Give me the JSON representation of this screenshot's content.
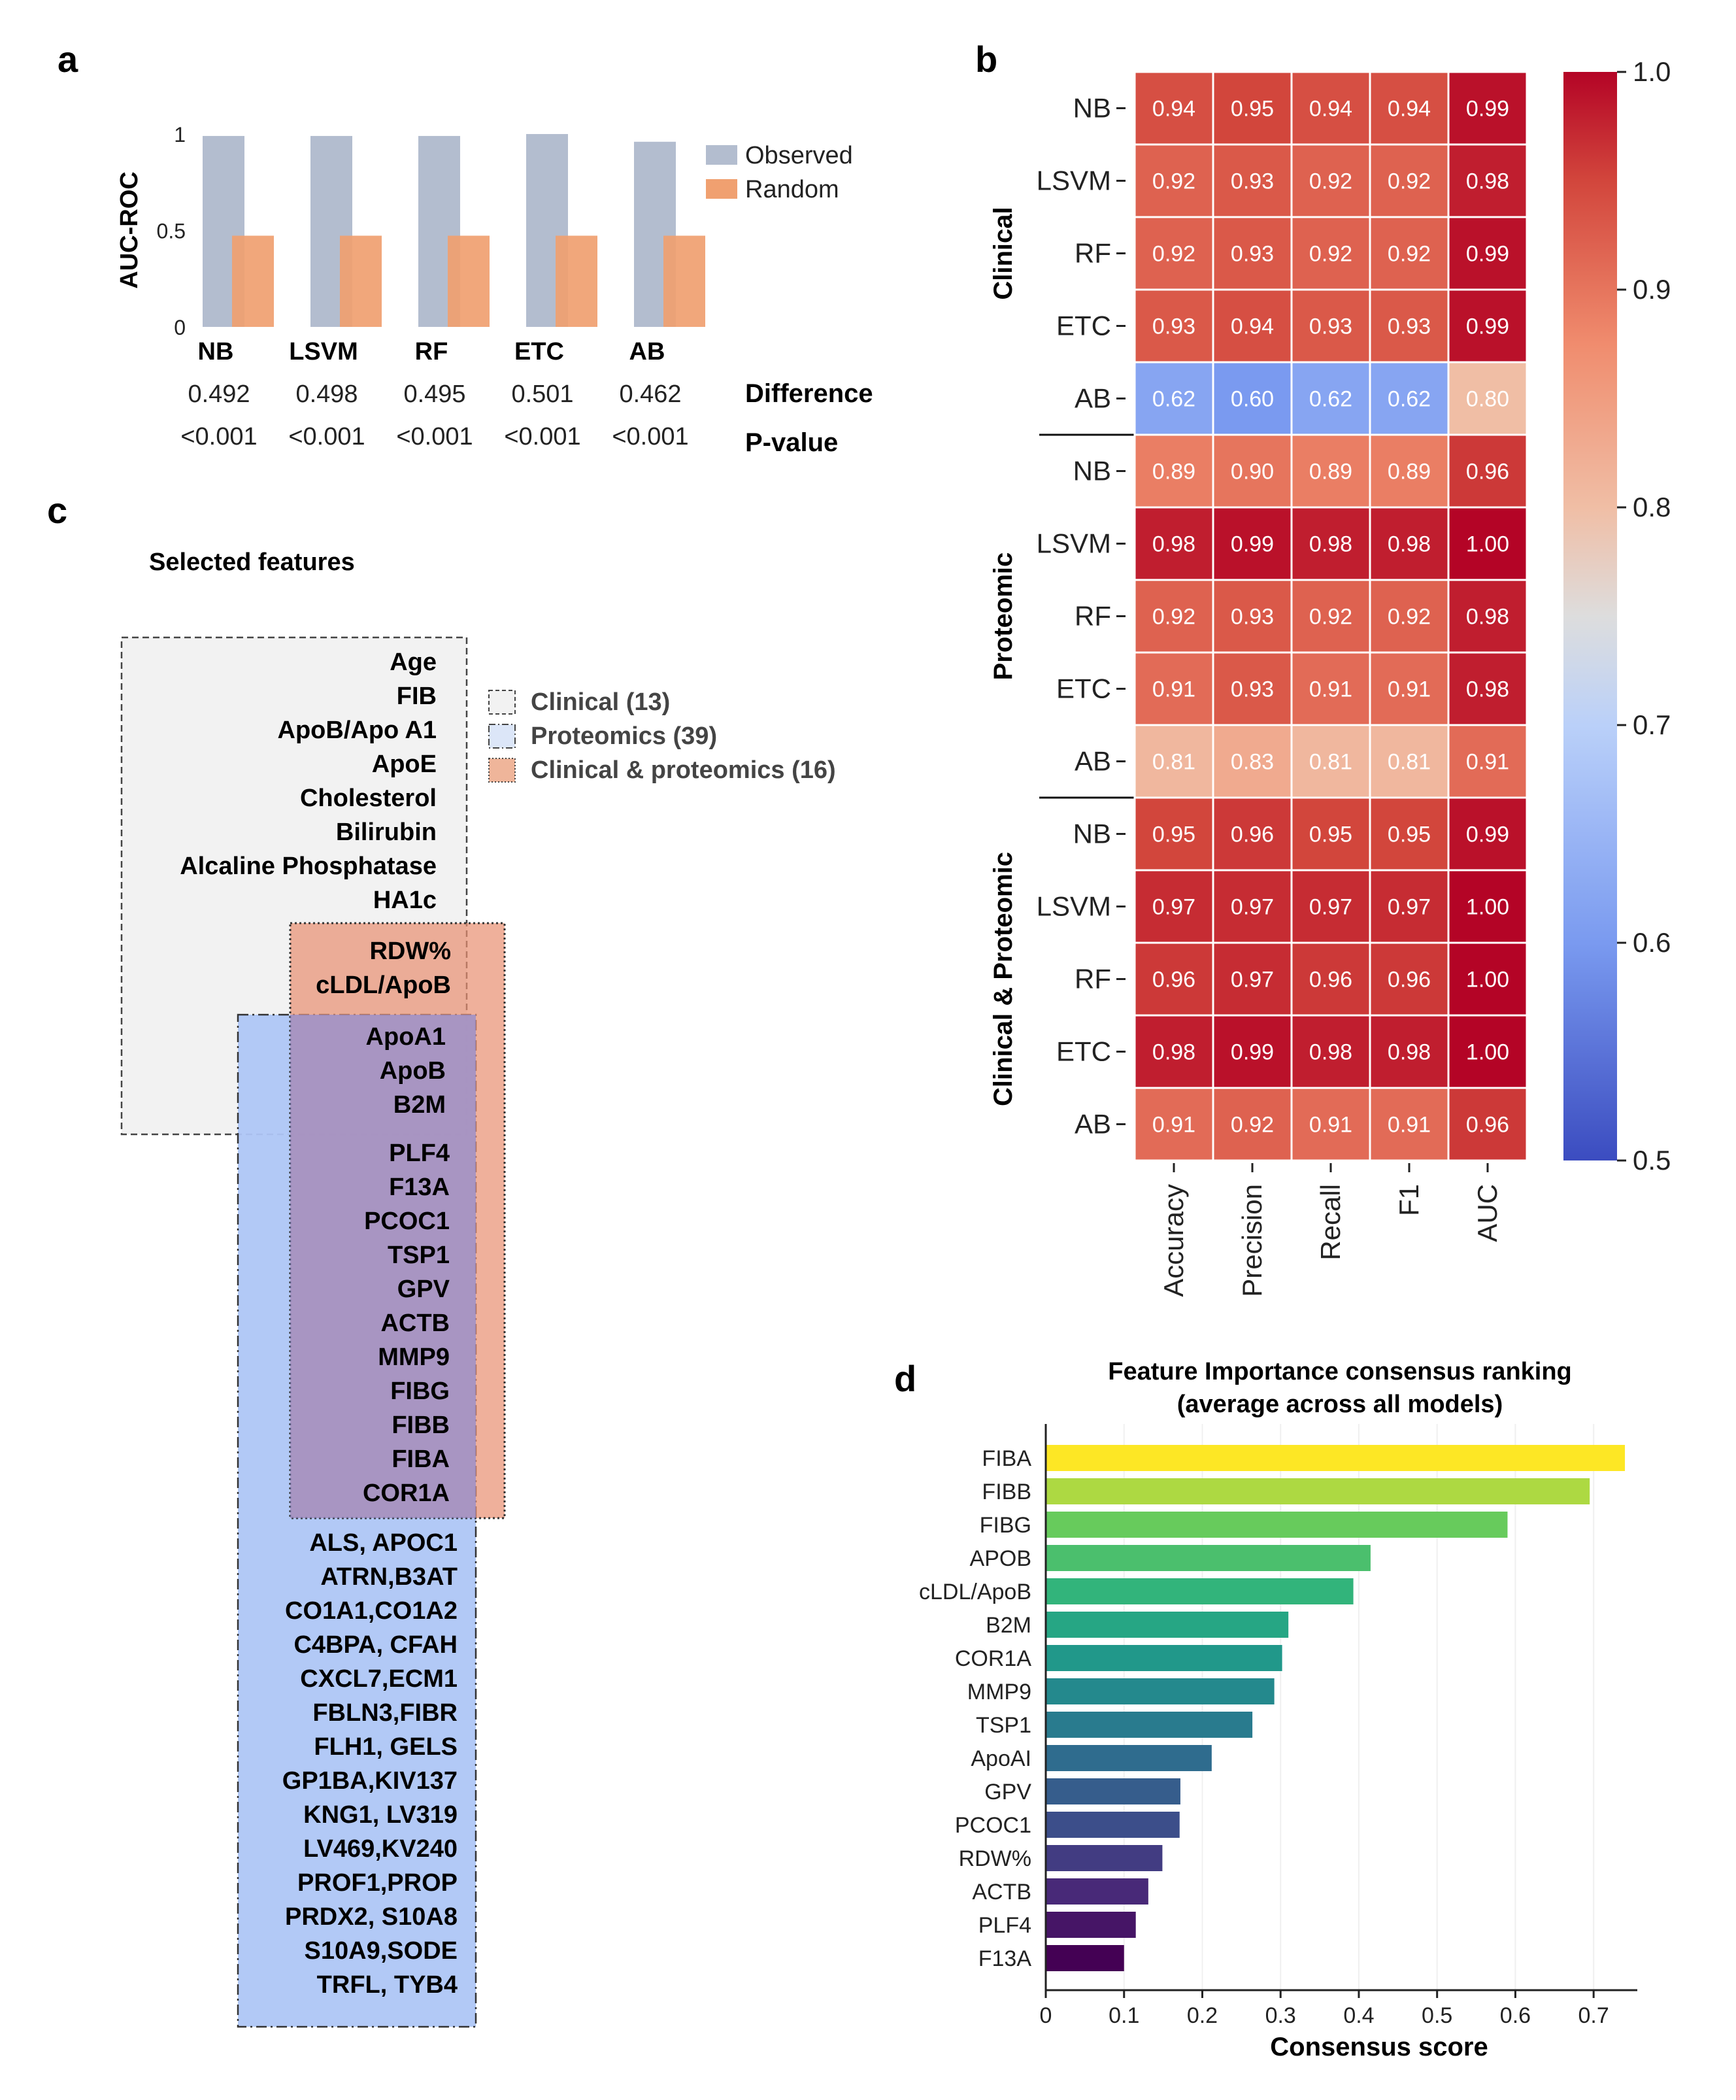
{
  "panel_labels": {
    "a": "a",
    "b": "b",
    "c": "c",
    "d": "d"
  },
  "chart_data": [
    {
      "panel": "a",
      "type": "bar",
      "categories": [
        "NB",
        "LSVM",
        "RF",
        "ETC",
        "AB"
      ],
      "series": [
        {
          "name": "Observed",
          "values": [
            0.99,
            0.99,
            0.99,
            1.0,
            0.96
          ],
          "color": "#b3bdcf"
        },
        {
          "name": "Random",
          "values": [
            0.5,
            0.5,
            0.5,
            0.5,
            0.5
          ],
          "color": "#f0a070"
        }
      ],
      "ylabel": "AUC-ROC",
      "yticks": [
        "0",
        "0.5",
        "1"
      ],
      "ylim": [
        0,
        1
      ],
      "legend": "top-right",
      "rows": {
        "difference_label": "Difference",
        "difference": [
          "0.492",
          "0.498",
          "0.495",
          "0.501",
          "0.462"
        ],
        "pvalue_label": "P-value",
        "pvalue": [
          "<0.001",
          "<0.001",
          "<0.001",
          "<0.001",
          "<0.001"
        ]
      }
    },
    {
      "panel": "b",
      "type": "heatmap",
      "columns": [
        "Accuracy",
        "Precision",
        "Recall",
        "F1",
        "AUC"
      ],
      "groups": [
        {
          "name": "Clinical",
          "rows": [
            "NB",
            "LSVM",
            "RF",
            "ETC",
            "AB"
          ],
          "values": [
            [
              0.94,
              0.95,
              0.94,
              0.94,
              0.99
            ],
            [
              0.92,
              0.93,
              0.92,
              0.92,
              0.98
            ],
            [
              0.92,
              0.93,
              0.92,
              0.92,
              0.99
            ],
            [
              0.93,
              0.94,
              0.93,
              0.93,
              0.99
            ],
            [
              0.62,
              0.6,
              0.62,
              0.62,
              0.8
            ]
          ],
          "labels": [
            [
              "0.94",
              "0.95",
              "0.94",
              "0.94",
              "0.99"
            ],
            [
              "0.92",
              "0.93",
              "0.92",
              "0.92",
              "0.98"
            ],
            [
              "0.92",
              "0.93",
              "0.92",
              "0.92",
              "0.99"
            ],
            [
              "0.93",
              "0.94",
              "0.93",
              "0.93",
              "0.99"
            ],
            [
              "0.62",
              "0.60",
              "0.62",
              "0.62",
              "0.80"
            ]
          ]
        },
        {
          "name": "Proteomic",
          "rows": [
            "NB",
            "LSVM",
            "RF",
            "ETC",
            "AB"
          ],
          "values": [
            [
              0.89,
              0.9,
              0.89,
              0.89,
              0.96
            ],
            [
              0.98,
              0.99,
              0.98,
              0.98,
              1.0
            ],
            [
              0.92,
              0.93,
              0.92,
              0.92,
              0.98
            ],
            [
              0.91,
              0.93,
              0.91,
              0.91,
              0.98
            ],
            [
              0.81,
              0.83,
              0.81,
              0.81,
              0.91
            ]
          ],
          "labels": [
            [
              "0.89",
              "0.90",
              "0.89",
              "0.89",
              "0.96"
            ],
            [
              "0.98",
              "0.99",
              "0.98",
              "0.98",
              "1.00"
            ],
            [
              "0.92",
              "0.93",
              "0.92",
              "0.92",
              "0.98"
            ],
            [
              "0.91",
              "0.93",
              "0.91",
              "0.91",
              "0.98"
            ],
            [
              "0.81",
              "0.83",
              "0.81",
              "0.81",
              "0.91"
            ]
          ]
        },
        {
          "name": "Clinical & Proteomic",
          "rows": [
            "NB",
            "LSVM",
            "RF",
            "ETC",
            "AB"
          ],
          "values": [
            [
              0.95,
              0.96,
              0.95,
              0.95,
              0.99
            ],
            [
              0.97,
              0.97,
              0.97,
              0.97,
              1.0
            ],
            [
              0.96,
              0.97,
              0.96,
              0.96,
              1.0
            ],
            [
              0.98,
              0.99,
              0.98,
              0.98,
              1.0
            ],
            [
              0.91,
              0.92,
              0.91,
              0.91,
              0.96
            ]
          ],
          "labels": [
            [
              "0.95",
              "0.96",
              "0.95",
              "0.95",
              "0.99"
            ],
            [
              "0.97",
              "0.97",
              "0.97",
              "0.97",
              "1.00"
            ],
            [
              "0.96",
              "0.97",
              "0.96",
              "0.96",
              "1.00"
            ],
            [
              "0.98",
              "0.99",
              "0.98",
              "0.98",
              "1.00"
            ],
            [
              "0.91",
              "0.92",
              "0.91",
              "0.91",
              "0.96"
            ]
          ]
        }
      ],
      "colorbar": {
        "ticks": [
          "0.5",
          "0.6",
          "0.7",
          "0.8",
          "0.9",
          "1.0"
        ],
        "range": [
          0.5,
          1.0
        ],
        "colormap": "coolwarm"
      }
    },
    {
      "panel": "d",
      "type": "bar",
      "orientation": "horizontal",
      "title": "Feature Importance consensus ranking",
      "subtitle": "(average across all models)",
      "categories": [
        "FIBA",
        "FIBB",
        "FIBG",
        "APOB",
        "cLDL/ApoB",
        "B2M",
        "COR1A",
        "MMP9",
        "TSP1",
        "ApoAI",
        "GPV",
        "PCOC1",
        "RDW%",
        "ACTB",
        "PLF4",
        "F13A"
      ],
      "values": [
        0.74,
        0.695,
        0.59,
        0.415,
        0.393,
        0.31,
        0.302,
        0.292,
        0.264,
        0.212,
        0.172,
        0.171,
        0.149,
        0.131,
        0.115,
        0.1
      ],
      "xlabel": "Consensus score",
      "xticks": [
        "0",
        "0.1",
        "0.2",
        "0.3",
        "0.4",
        "0.5",
        "0.6",
        "0.7"
      ],
      "xlim": [
        0,
        0.76
      ],
      "colormap": "viridis"
    }
  ],
  "panel_c": {
    "title": "Selected features",
    "legend": [
      {
        "label": "Clinical",
        "count": "(13)"
      },
      {
        "label": "Proteomics",
        "count": "(39)"
      },
      {
        "label": "Clinical & proteomics",
        "count": "(16)"
      }
    ],
    "clinical_only": [
      "Age",
      "FIB",
      "ApoB/Apo A1",
      "ApoE",
      "Cholesterol",
      "Bilirubin",
      "Alcaline Phosphatase",
      "HA1c"
    ],
    "clinical_and_combined": [
      "RDW%",
      "cLDL/ApoB"
    ],
    "all_three": [
      "ApoA1",
      "ApoB",
      "B2M"
    ],
    "proteomics_and_combined": [
      "PLF4",
      "F13A",
      "PCOC1",
      "TSP1",
      "GPV",
      "ACTB",
      "MMP9",
      "FIBG",
      "FIBB",
      "FIBA",
      "COR1A"
    ],
    "proteomics_only": [
      "ALS, APOC1",
      "ATRN,B3AT",
      "CO1A1,CO1A2",
      "C4BPA,  CFAH",
      "CXCL7,ECM1",
      "FBLN3,FIBR",
      "FLH1,  GELS",
      "GP1BA,KIV137",
      "KNG1,  LV319",
      "LV469,KV240",
      "PROF1,PROP",
      "PRDX2,  S10A8",
      "S10A9,SODE",
      "TRFL,  TYB4"
    ]
  }
}
